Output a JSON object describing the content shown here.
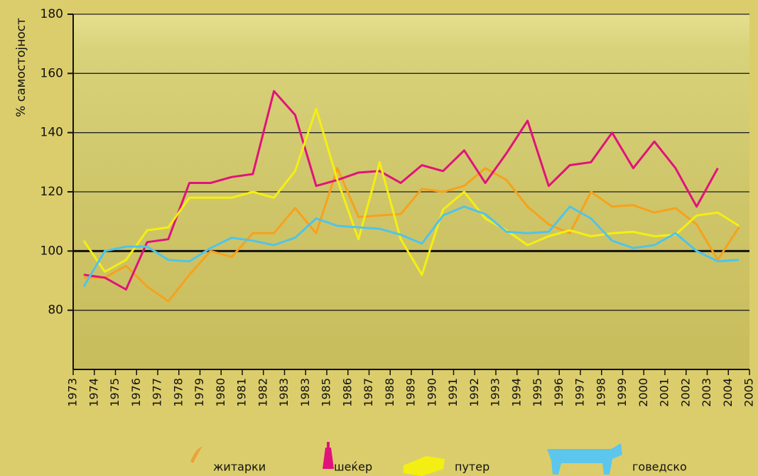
{
  "chart_data": {
    "type": "line",
    "y_axis_label": "% самостојност",
    "categories": [
      "1973",
      "1974",
      "1975",
      "1976",
      "1977",
      "1978",
      "1979",
      "1980",
      "1981",
      "1982",
      "1983",
      "1983",
      "1985",
      "1986",
      "1987",
      "1988",
      "1989",
      "1990",
      "1991",
      "1992",
      "1993",
      "1994",
      "1995",
      "1996",
      "1997",
      "1998",
      "1999",
      "2000",
      "2001",
      "2002",
      "2003",
      "2004",
      "2005"
    ],
    "series": [
      {
        "name": "житарки",
        "color": "#f6a21c",
        "values": [
          91,
          91,
          95,
          88,
          83,
          92,
          100,
          98,
          106,
          106,
          114.5,
          106,
          128,
          111.5,
          112,
          112.5,
          121,
          120,
          122,
          128,
          124,
          115,
          109,
          106,
          120,
          115,
          115.5,
          113,
          114.5,
          109,
          97,
          108,
          null
        ]
      },
      {
        "name": "шеќер",
        "color": "#e0137b",
        "values": [
          92,
          91,
          87,
          103,
          104,
          123,
          123,
          125,
          126,
          154,
          146,
          122,
          124,
          126.5,
          127,
          123,
          129,
          127,
          134,
          123,
          133,
          144,
          122,
          129,
          130,
          140,
          128,
          137,
          128,
          115,
          128,
          null,
          null
        ]
      },
      {
        "name": "путер",
        "color": "#f4ef12",
        "values": [
          103.5,
          93,
          97,
          107,
          108,
          118,
          118,
          118,
          120,
          118,
          127,
          148,
          124,
          104,
          130,
          104,
          92,
          114,
          120,
          111,
          107,
          102,
          105,
          107,
          105,
          106,
          106.5,
          105,
          105.5,
          112,
          113,
          108.5,
          null
        ]
      },
      {
        "name": "говедско",
        "color": "#4fc4e9",
        "values": [
          88,
          100,
          101.5,
          101.5,
          97,
          96.5,
          101,
          104.5,
          103.5,
          102,
          104.5,
          111,
          108.5,
          108,
          107.5,
          105.5,
          102.5,
          112,
          115,
          112.5,
          106.5,
          106,
          106.5,
          115,
          111,
          103.5,
          101,
          102,
          106,
          100,
          96.5,
          97,
          null
        ]
      }
    ],
    "ylim": [
      60,
      180
    ],
    "yticks": [
      80,
      100,
      120,
      140,
      160,
      180
    ],
    "grid": true,
    "reference_line": 100
  }
}
